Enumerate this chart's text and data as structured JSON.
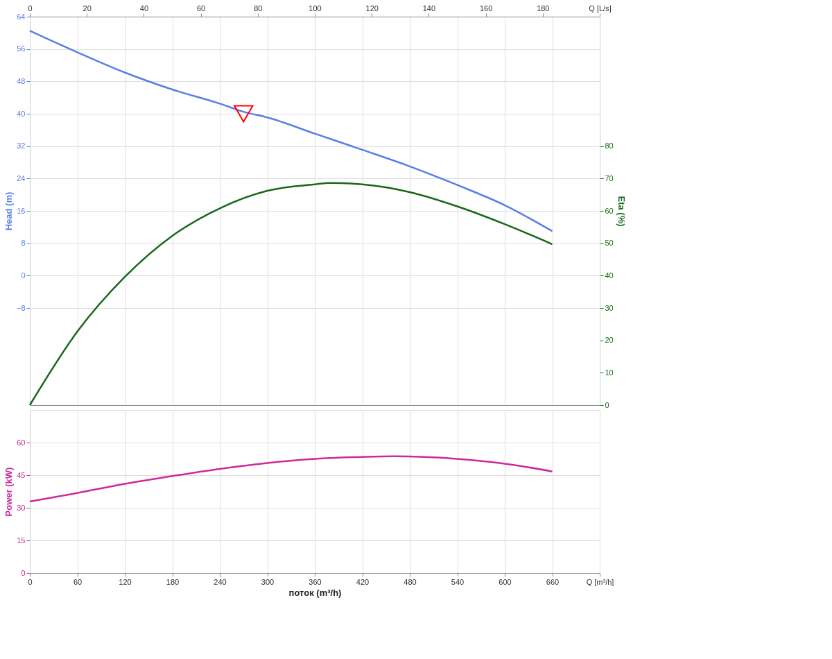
{
  "chart_data": [
    {
      "type": "line",
      "xlim": [
        0,
        720
      ],
      "xticks": [
        0,
        60,
        120,
        180,
        240,
        300,
        360,
        420,
        480,
        540,
        600,
        660,
        720
      ],
      "x2lim": [
        0,
        200
      ],
      "x2ticks": [
        0,
        20,
        40,
        60,
        80,
        100,
        120,
        140,
        160,
        180,
        {
          "value": 200,
          "label": "Q [L/s]"
        }
      ],
      "ylim": [
        -32,
        64
      ],
      "yticks": [
        -8,
        0,
        8,
        16,
        24,
        32,
        40,
        48,
        56,
        64
      ],
      "y2lim": [
        0,
        120
      ],
      "y2ticks": [
        0,
        10,
        20,
        30,
        40,
        50,
        60,
        70,
        80
      ],
      "ylabel": "Head (m)",
      "y2label": "Eta (%)",
      "grid": true,
      "tick_labels": "y",
      "series": [
        {
          "color": "#5a7ee6",
          "x": [
            0,
            60,
            120,
            180,
            240,
            270,
            300,
            360,
            420,
            480,
            540,
            600,
            660
          ],
          "values": [
            60.5,
            55.2,
            50.2,
            46.0,
            42.5,
            40.5,
            39.1,
            35.1,
            31.1,
            27.0,
            22.4,
            17.4,
            11.0
          ]
        },
        {
          "type": "scatter",
          "marker": "triangle",
          "color": "#ff0000",
          "x": [
            270
          ],
          "values": [
            40
          ]
        },
        {
          "axis": "y2",
          "color": "#17691a",
          "x": [
            0,
            60,
            120,
            180,
            240,
            300,
            360,
            380,
            420,
            480,
            540,
            600,
            660
          ],
          "values": [
            0,
            22.7,
            39.6,
            52.3,
            60.8,
            66.2,
            68.2,
            68.6,
            68.2,
            65.8,
            61.4,
            55.9,
            49.7
          ]
        }
      ]
    },
    {
      "type": "line",
      "xlim": [
        0,
        720
      ],
      "xticks": [
        0,
        60,
        120,
        180,
        240,
        300,
        360,
        420,
        480,
        540,
        600,
        660,
        {
          "value": 720,
          "label": "Q [m³/h]"
        }
      ],
      "xlabel": "поток (m³/h)",
      "ylim": [
        0,
        75
      ],
      "yticks": [
        0,
        15,
        30,
        45,
        60
      ],
      "ylabel": "Power (kW)",
      "grid": true,
      "series": [
        {
          "color": "#cc2a9a",
          "x": [
            0,
            60,
            120,
            180,
            240,
            300,
            360,
            420,
            460,
            540,
            600,
            660
          ],
          "values": [
            32.9,
            36.8,
            41.0,
            44.6,
            47.9,
            50.6,
            52.5,
            53.4,
            53.7,
            52.5,
            50.3,
            46.7
          ]
        }
      ]
    }
  ]
}
